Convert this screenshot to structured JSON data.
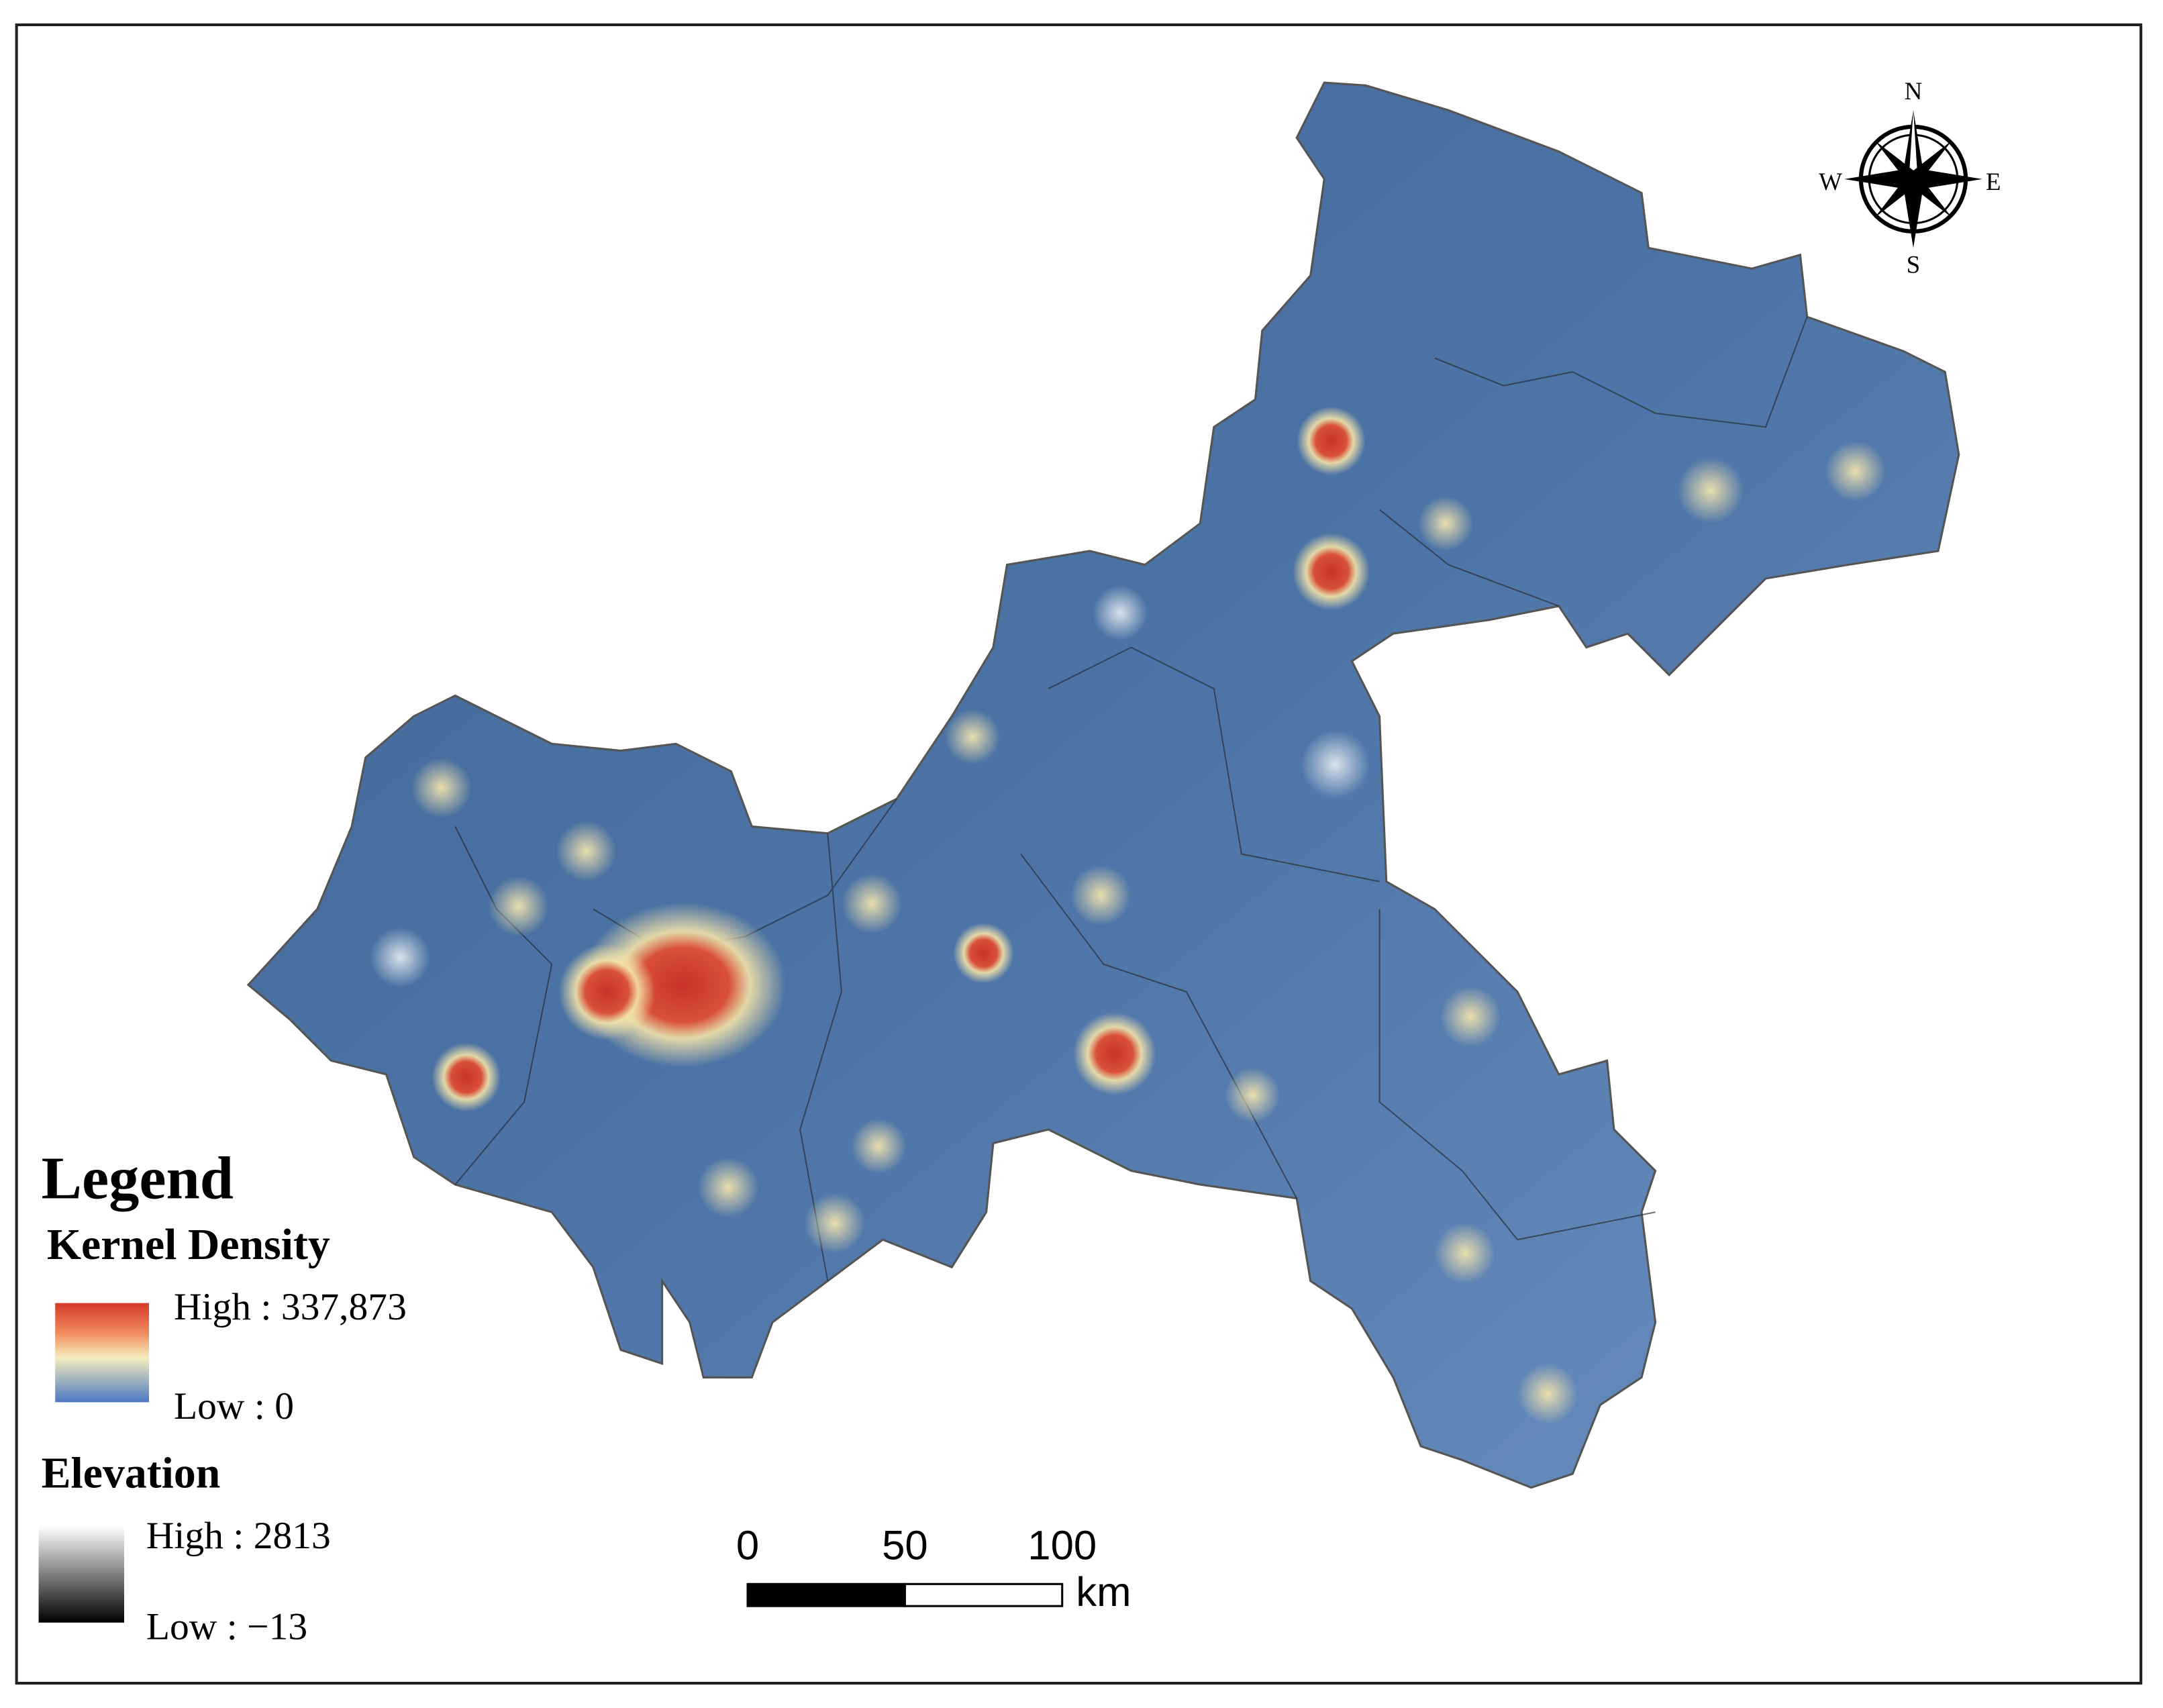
{
  "compass": {
    "north": "N",
    "south": "S",
    "west": "W",
    "east": "E"
  },
  "legend": {
    "title": "Legend",
    "kernel_density": {
      "title": "Kernel Density",
      "high": "High : 337,873",
      "low": "Low : 0"
    },
    "elevation": {
      "title": "Elevation",
      "high": "High : 2813",
      "low": "Low : −13"
    }
  },
  "scale_bar": {
    "ticks": [
      0,
      50,
      100
    ],
    "unit": "km"
  }
}
